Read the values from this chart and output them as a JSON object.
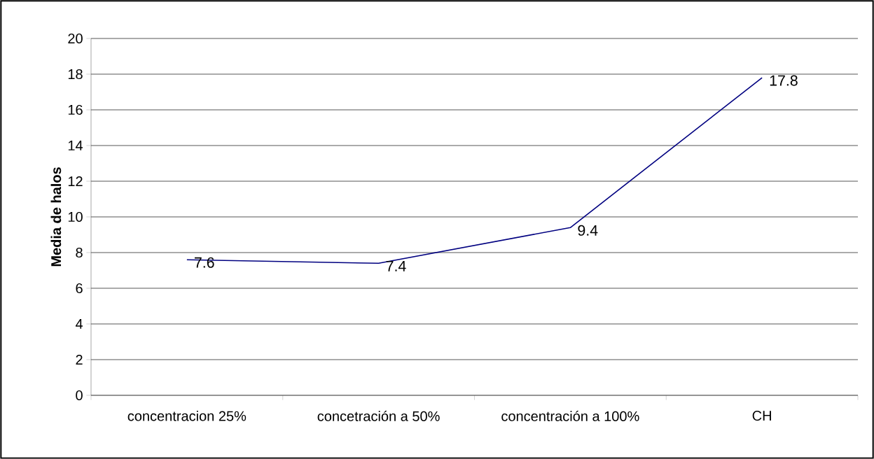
{
  "chart_data": {
    "type": "line",
    "ylabel": "Media de halos",
    "categories": [
      "concentracion 25%",
      "concetración a 50%",
      "concentración a 100%",
      "CH"
    ],
    "values": [
      7.6,
      7.4,
      9.4,
      17.8
    ],
    "color": "#000080",
    "ylim": [
      0,
      20
    ],
    "yticks": [
      0,
      2,
      4,
      6,
      8,
      10,
      12,
      14,
      16,
      18,
      20
    ],
    "grid": "y",
    "marker": "none",
    "line_style": "solid",
    "data_labels": true
  }
}
